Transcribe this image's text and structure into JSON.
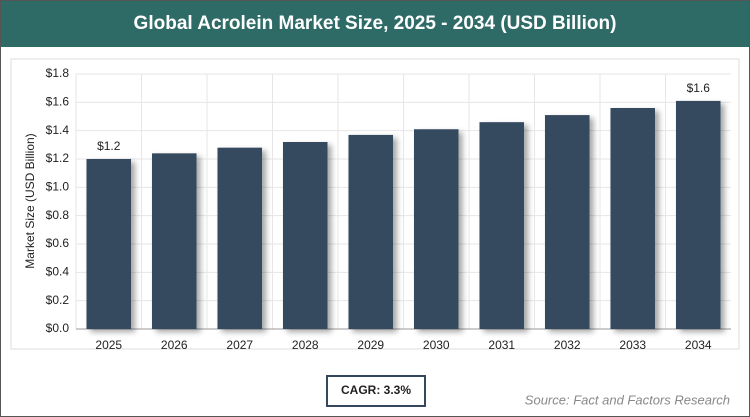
{
  "chart_data": {
    "type": "bar",
    "title": "Global Acrolein Market Size, 2025 - 2034 (USD Billion)",
    "y_axis_label": "Market Size (USD Billion)",
    "categories": [
      "2025",
      "2026",
      "2027",
      "2028",
      "2029",
      "2030",
      "2031",
      "2032",
      "2033",
      "2034"
    ],
    "values": [
      1.2,
      1.24,
      1.28,
      1.32,
      1.37,
      1.41,
      1.46,
      1.51,
      1.56,
      1.61
    ],
    "value_labels": [
      "$1.2",
      null,
      null,
      null,
      null,
      null,
      null,
      null,
      null,
      "$1.6"
    ],
    "color": "#34495e",
    "ylim": [
      0,
      1.8
    ],
    "yticks": [
      {
        "value": 0,
        "label": "$0.0"
      },
      {
        "value": 0.2,
        "label": "$0.2"
      },
      {
        "value": 0.4,
        "label": "$0.4"
      },
      {
        "value": 0.6,
        "label": "$0.6"
      },
      {
        "value": 0.8,
        "label": "$0.8"
      },
      {
        "value": 1.0,
        "label": "$1.0"
      },
      {
        "value": 1.2,
        "label": "$1.2"
      },
      {
        "value": 1.4,
        "label": "$1.4"
      },
      {
        "value": 1.6,
        "label": "$1.6"
      },
      {
        "value": 1.8,
        "label": "$1.8"
      }
    ],
    "grid": true,
    "annotation": "CAGR: 3.3%",
    "source": "Source: Fact and Factors Research"
  }
}
